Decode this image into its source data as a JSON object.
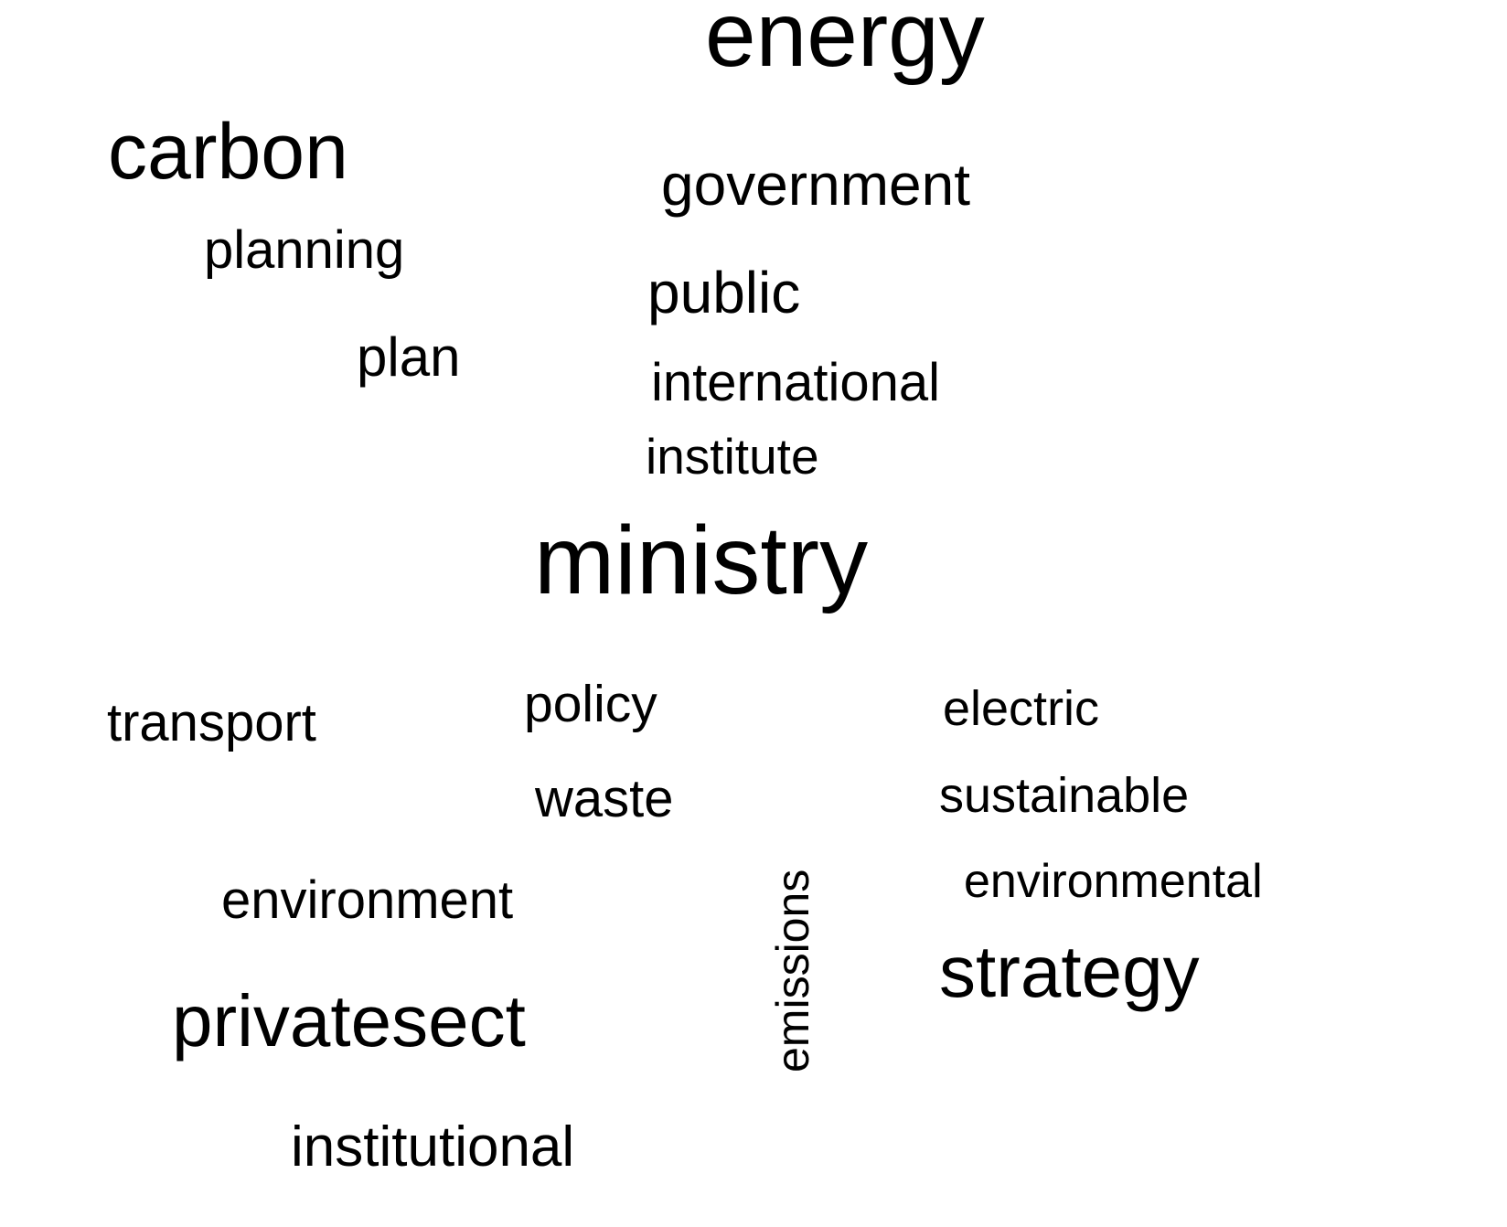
{
  "words": [
    {
      "text": "energy",
      "rotated": false
    },
    {
      "text": "carbon",
      "rotated": false
    },
    {
      "text": "government",
      "rotated": false
    },
    {
      "text": "planning",
      "rotated": false
    },
    {
      "text": "public",
      "rotated": false
    },
    {
      "text": "plan",
      "rotated": false
    },
    {
      "text": "international",
      "rotated": false
    },
    {
      "text": "institute",
      "rotated": false
    },
    {
      "text": "ministry",
      "rotated": false
    },
    {
      "text": "transport",
      "rotated": false
    },
    {
      "text": "policy",
      "rotated": false
    },
    {
      "text": "electric",
      "rotated": false
    },
    {
      "text": "waste",
      "rotated": false
    },
    {
      "text": "sustainable",
      "rotated": false
    },
    {
      "text": "emissions",
      "rotated": true
    },
    {
      "text": "environment",
      "rotated": false
    },
    {
      "text": "environmental",
      "rotated": false
    },
    {
      "text": "strategy",
      "rotated": false
    },
    {
      "text": "privatesect",
      "rotated": false
    },
    {
      "text": "institutional",
      "rotated": false
    }
  ],
  "colors": {
    "text": "#000000",
    "background": "#ffffff"
  }
}
